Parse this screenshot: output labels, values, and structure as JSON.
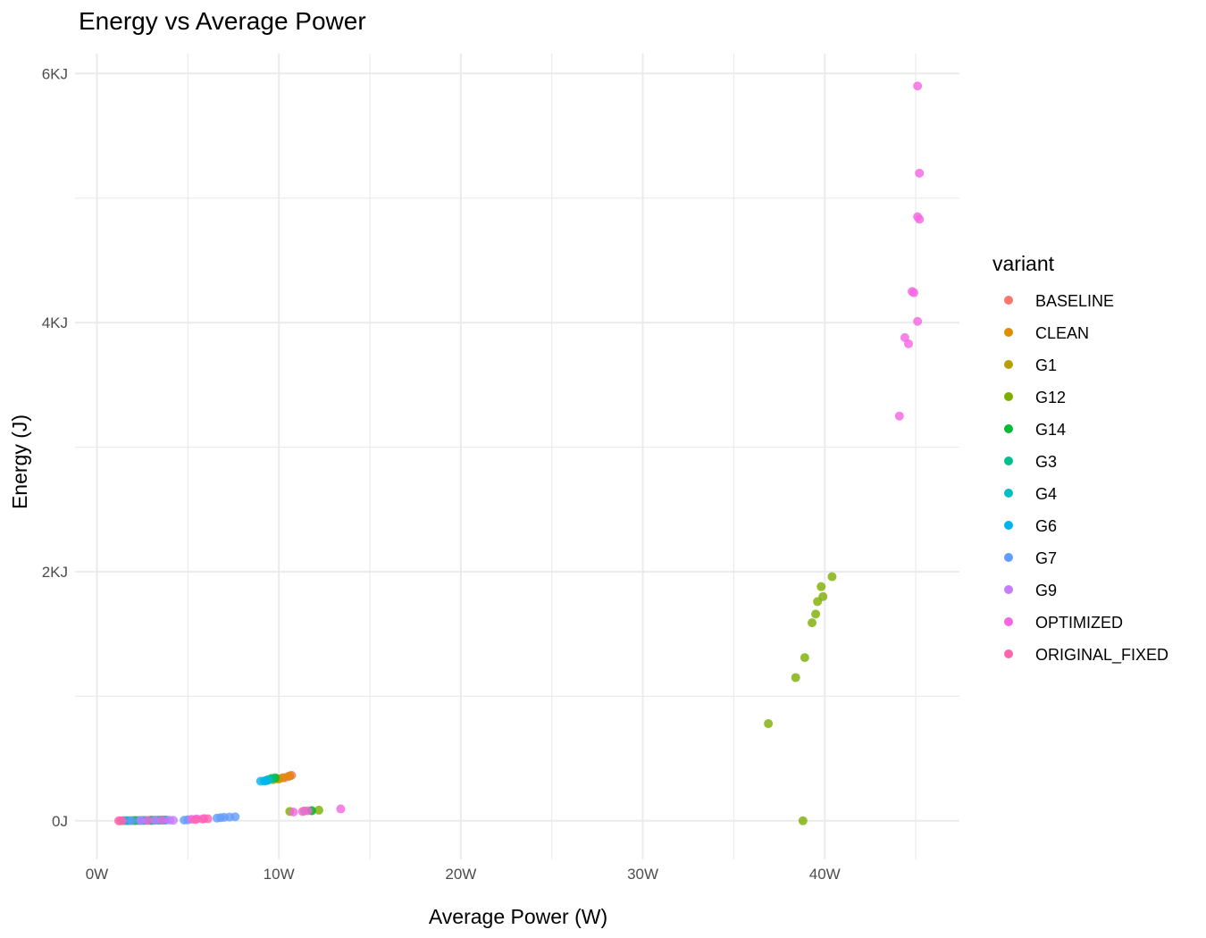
{
  "chart_data": {
    "type": "scatter",
    "title": "Energy vs Average Power",
    "xlabel": "Average Power (W)",
    "ylabel": "Energy (J)",
    "xlim": [
      -1.2,
      47.4
    ],
    "ylim": [
      -310,
      6160
    ],
    "x_ticks": [
      0,
      10,
      20,
      30,
      40
    ],
    "x_tick_labels": [
      "0W",
      "10W",
      "20W",
      "30W",
      "40W"
    ],
    "y_ticks": [
      0,
      2000,
      4000,
      6000
    ],
    "y_tick_labels": [
      "0J",
      "2KJ",
      "4KJ",
      "6KJ"
    ],
    "grid": true,
    "legend": {
      "title": "variant",
      "position": "right"
    },
    "series": [
      {
        "name": "BASELINE",
        "color": "#F8766D",
        "points": [
          [
            1.3,
            0
          ],
          [
            2.2,
            2
          ],
          [
            3.0,
            4
          ],
          [
            10.3,
            345
          ],
          [
            10.5,
            355
          ],
          [
            10.6,
            360
          ],
          [
            10.7,
            365
          ]
        ]
      },
      {
        "name": "CLEAN",
        "color": "#DE8C00",
        "points": [
          [
            1.6,
            1
          ],
          [
            2.5,
            3
          ],
          [
            3.2,
            5
          ],
          [
            10.0,
            335
          ],
          [
            10.2,
            345
          ],
          [
            10.6,
            360
          ]
        ]
      },
      {
        "name": "G1",
        "color": "#B79F00",
        "points": [
          [
            1.8,
            1
          ],
          [
            2.7,
            3
          ],
          [
            3.4,
            5
          ],
          [
            9.7,
            330
          ],
          [
            9.9,
            338
          ]
        ]
      },
      {
        "name": "G12",
        "color": "#7CAE00",
        "points": [
          [
            2.0,
            2
          ],
          [
            2.9,
            4
          ],
          [
            3.6,
            6
          ],
          [
            10.6,
            75
          ],
          [
            11.4,
            78
          ],
          [
            11.8,
            80
          ],
          [
            12.2,
            85
          ],
          [
            36.9,
            780
          ],
          [
            38.4,
            1150
          ],
          [
            38.9,
            1310
          ],
          [
            39.3,
            1590
          ],
          [
            39.5,
            1660
          ],
          [
            39.6,
            1760
          ],
          [
            39.8,
            1880
          ],
          [
            39.9,
            1800
          ],
          [
            40.4,
            1960
          ],
          [
            38.8,
            0
          ]
        ]
      },
      {
        "name": "G14",
        "color": "#00BA38",
        "points": [
          [
            2.1,
            2
          ],
          [
            3.0,
            4
          ],
          [
            3.7,
            6
          ],
          [
            9.6,
            340
          ],
          [
            9.8,
            345
          ],
          [
            11.8,
            82
          ]
        ]
      },
      {
        "name": "G3",
        "color": "#00C08B",
        "points": [
          [
            2.3,
            2
          ],
          [
            3.1,
            4
          ],
          [
            3.5,
            5
          ],
          [
            9.4,
            330
          ],
          [
            9.6,
            338
          ]
        ]
      },
      {
        "name": "G4",
        "color": "#00BFC4",
        "points": [
          [
            1.5,
            1
          ],
          [
            2.4,
            3
          ],
          [
            3.3,
            5
          ],
          [
            9.2,
            320
          ],
          [
            9.4,
            325
          ]
        ]
      },
      {
        "name": "G6",
        "color": "#00B4F0",
        "points": [
          [
            1.7,
            1
          ],
          [
            2.6,
            3
          ],
          [
            3.8,
            6
          ],
          [
            9.0,
            318
          ],
          [
            9.3,
            322
          ]
        ]
      },
      {
        "name": "G7",
        "color": "#619CFF",
        "points": [
          [
            1.9,
            1
          ],
          [
            4.8,
            5
          ],
          [
            5.0,
            8
          ],
          [
            6.6,
            22
          ],
          [
            6.8,
            25
          ],
          [
            7.0,
            28
          ],
          [
            7.3,
            30
          ],
          [
            7.6,
            32
          ]
        ]
      },
      {
        "name": "G9",
        "color": "#C77CFF",
        "points": [
          [
            2.4,
            2
          ],
          [
            3.2,
            4
          ],
          [
            4.0,
            5
          ],
          [
            4.2,
            4
          ]
        ]
      },
      {
        "name": "OPTIMIZED",
        "color": "#F564E3",
        "points": [
          [
            2.8,
            3
          ],
          [
            3.6,
            5
          ],
          [
            5.2,
            12
          ],
          [
            5.5,
            15
          ],
          [
            5.9,
            18
          ],
          [
            10.8,
            70
          ],
          [
            11.3,
            75
          ],
          [
            11.6,
            80
          ],
          [
            13.4,
            95
          ],
          [
            44.1,
            3250
          ],
          [
            44.4,
            3880
          ],
          [
            44.6,
            3830
          ],
          [
            44.8,
            4250
          ],
          [
            44.9,
            4240
          ],
          [
            45.1,
            4010
          ],
          [
            45.1,
            4850
          ],
          [
            45.2,
            4830
          ],
          [
            45.2,
            5200
          ],
          [
            45.1,
            5900
          ]
        ]
      },
      {
        "name": "ORIGINAL_FIXED",
        "color": "#FF64B0",
        "points": [
          [
            1.2,
            0
          ],
          [
            1.4,
            1
          ],
          [
            5.4,
            10
          ],
          [
            5.8,
            14
          ],
          [
            6.1,
            16
          ]
        ]
      }
    ]
  }
}
